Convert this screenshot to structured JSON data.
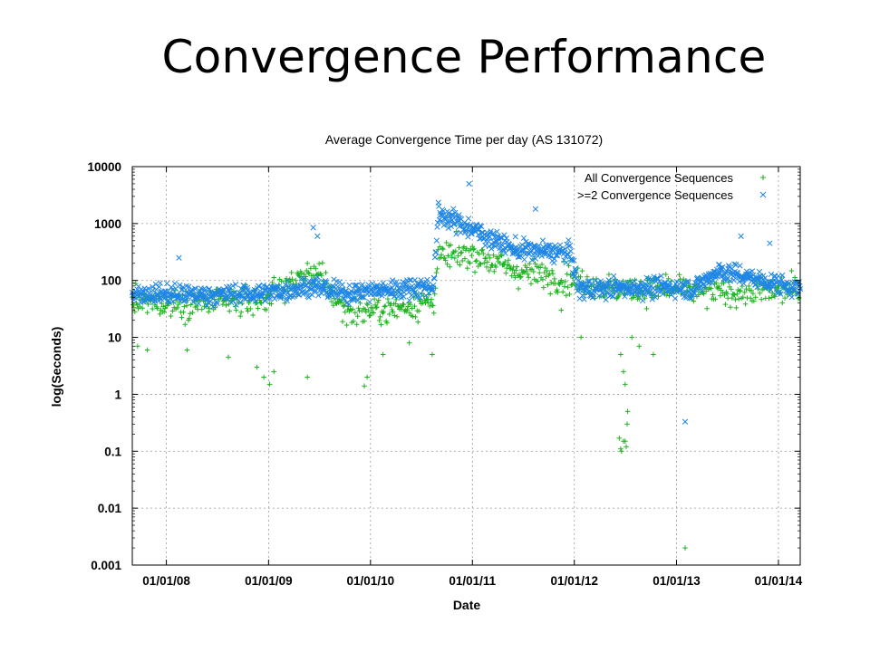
{
  "slide": {
    "title": "Convergence Performance"
  },
  "chart_data": {
    "type": "scatter",
    "title": "Average Convergence Time per day (AS 131072)",
    "xlabel": "Date",
    "ylabel": "log(Seconds)",
    "y_scale": "log",
    "ylim": [
      0.001,
      10000
    ],
    "xlim": [
      "2007-09-01",
      "2014-03-20"
    ],
    "y_tick_labels": [
      "0.001",
      "0.01",
      "0.1",
      "1",
      "10",
      "100",
      "1000",
      "10000"
    ],
    "x_tick_labels": [
      "01/01/08",
      "01/01/09",
      "01/01/10",
      "01/01/11",
      "01/01/12",
      "01/01/13",
      "01/01/14"
    ],
    "grid": "dashed",
    "legend_position": "top-right",
    "series": [
      {
        "name": "All Convergence Sequences",
        "marker": "+",
        "color": "#1fb21f",
        "trend": [
          {
            "x": "2007-09-01",
            "y": 40
          },
          {
            "x": "2008-06-01",
            "y": 40
          },
          {
            "x": "2008-12-01",
            "y": 45
          },
          {
            "x": "2009-03-01",
            "y": 80
          },
          {
            "x": "2009-06-15",
            "y": 150
          },
          {
            "x": "2009-10-01",
            "y": 30
          },
          {
            "x": "2010-03-01",
            "y": 30
          },
          {
            "x": "2010-08-15",
            "y": 45
          },
          {
            "x": "2010-09-01",
            "y": 250
          },
          {
            "x": "2011-01-01",
            "y": 300
          },
          {
            "x": "2011-06-01",
            "y": 150
          },
          {
            "x": "2012-01-01",
            "y": 100
          },
          {
            "x": "2012-06-01",
            "y": 70
          },
          {
            "x": "2013-01-01",
            "y": 70
          },
          {
            "x": "2013-06-01",
            "y": 60
          },
          {
            "x": "2014-03-20",
            "y": 70
          }
        ],
        "outliers": [
          {
            "x": "2007-09-20",
            "y": 7
          },
          {
            "x": "2007-10-25",
            "y": 6
          },
          {
            "x": "2008-03-15",
            "y": 6
          },
          {
            "x": "2008-08-10",
            "y": 4.5
          },
          {
            "x": "2008-11-20",
            "y": 3
          },
          {
            "x": "2008-12-15",
            "y": 2
          },
          {
            "x": "2009-01-05",
            "y": 1.5
          },
          {
            "x": "2009-01-20",
            "y": 2.5
          },
          {
            "x": "2009-05-20",
            "y": 2
          },
          {
            "x": "2009-12-10",
            "y": 1.4
          },
          {
            "x": "2009-12-20",
            "y": 2
          },
          {
            "x": "2010-02-15",
            "y": 5
          },
          {
            "x": "2010-05-20",
            "y": 8
          },
          {
            "x": "2010-08-10",
            "y": 5
          },
          {
            "x": "2011-11-15",
            "y": 30
          },
          {
            "x": "2012-01-25",
            "y": 10
          },
          {
            "x": "2012-06-10",
            "y": 0.17
          },
          {
            "x": "2012-06-15",
            "y": 0.11
          },
          {
            "x": "2012-06-18",
            "y": 0.1
          },
          {
            "x": "2012-06-25",
            "y": 0.15
          },
          {
            "x": "2012-07-01",
            "y": 0.15
          },
          {
            "x": "2012-07-05",
            "y": 0.12
          },
          {
            "x": "2012-07-08",
            "y": 0.3
          },
          {
            "x": "2012-07-10",
            "y": 0.5
          },
          {
            "x": "2012-07-01",
            "y": 1.5
          },
          {
            "x": "2012-06-25",
            "y": 2.5
          },
          {
            "x": "2012-06-15",
            "y": 5
          },
          {
            "x": "2012-07-25",
            "y": 10
          },
          {
            "x": "2012-08-20",
            "y": 7
          },
          {
            "x": "2012-10-10",
            "y": 5
          },
          {
            "x": "2013-02-01",
            "y": 0.002
          }
        ]
      },
      {
        "name": ">=2 Convergence Sequences",
        "marker": "x",
        "color": "#1e86e6",
        "trend": [
          {
            "x": "2007-09-01",
            "y": 60
          },
          {
            "x": "2008-06-01",
            "y": 55
          },
          {
            "x": "2009-01-01",
            "y": 60
          },
          {
            "x": "2009-06-01",
            "y": 80
          },
          {
            "x": "2009-10-01",
            "y": 60
          },
          {
            "x": "2010-06-01",
            "y": 75
          },
          {
            "x": "2010-08-15",
            "y": 80
          },
          {
            "x": "2010-09-01",
            "y": 1500
          },
          {
            "x": "2011-01-01",
            "y": 800
          },
          {
            "x": "2011-06-01",
            "y": 350
          },
          {
            "x": "2011-12-20",
            "y": 300
          },
          {
            "x": "2012-01-15",
            "y": 70
          },
          {
            "x": "2012-08-01",
            "y": 75
          },
          {
            "x": "2013-01-01",
            "y": 75
          },
          {
            "x": "2013-03-01",
            "y": 70
          },
          {
            "x": "2013-06-01",
            "y": 150
          },
          {
            "x": "2014-03-20",
            "y": 70
          }
        ],
        "outliers": [
          {
            "x": "2008-02-15",
            "y": 250
          },
          {
            "x": "2009-06-10",
            "y": 850
          },
          {
            "x": "2009-06-25",
            "y": 600
          },
          {
            "x": "2010-12-20",
            "y": 5000
          },
          {
            "x": "2011-08-15",
            "y": 1800
          },
          {
            "x": "2013-02-01",
            "y": 0.33
          },
          {
            "x": "2013-08-20",
            "y": 600
          },
          {
            "x": "2013-12-01",
            "y": 450
          }
        ]
      }
    ]
  }
}
